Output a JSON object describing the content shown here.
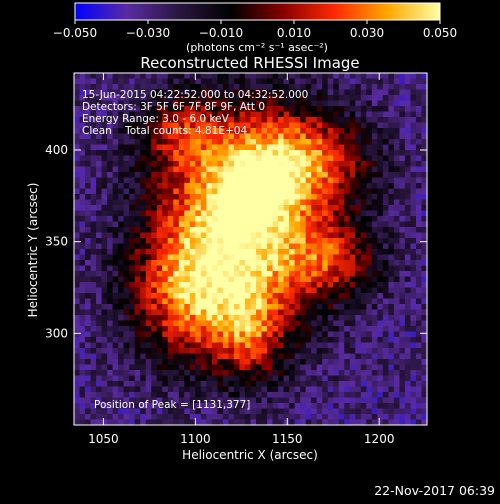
{
  "chart_data": {
    "type": "heatmap",
    "title": "Reconstructed RHESSI Image",
    "xlabel": "Heliocentric X (arcsec)",
    "ylabel": "Heliocentric Y (arcsec)",
    "xlim": [
      1034,
      1226
    ],
    "ylim": [
      250,
      442
    ],
    "x_ticks": [
      1050,
      1100,
      1150,
      1200
    ],
    "y_ticks": [
      300,
      350,
      400
    ],
    "colorbar": {
      "label": "(photons cm⁻² s⁻¹ asec⁻²)",
      "range": [
        -0.05,
        0.05
      ],
      "ticks": [
        {
          "value": -0.05,
          "label": "−0.050"
        },
        {
          "value": -0.03,
          "label": "−0.030"
        },
        {
          "value": -0.01,
          "label": "−0.010"
        },
        {
          "value": 0.01,
          "label": "0.010"
        },
        {
          "value": 0.03,
          "label": "0.030"
        },
        {
          "value": 0.05,
          "label": "0.050"
        }
      ],
      "colors": [
        "#0000ff",
        "#5a2ba2",
        "#2a1640",
        "#000000",
        "#8a0000",
        "#ff2b00",
        "#ffa800",
        "#ffffa6"
      ]
    },
    "peak": {
      "x": 1131,
      "y": 377
    },
    "annotations": [
      "15-Jun-2015 04:22:52.000 to 04:32:52.000",
      "Detectors: 3F 5F 6F 7F 8F 9F, Att 0",
      "Energy Range: 3.0 - 6.0 keV",
      "Clean    Total counts: 4.81E+04",
      "Position of Peak = [1131,377]"
    ]
  },
  "footer_date": "22-Nov-2017 06:39"
}
